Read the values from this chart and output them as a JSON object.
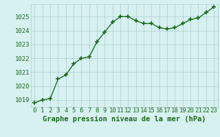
{
  "x": [
    0,
    1,
    2,
    3,
    4,
    5,
    6,
    7,
    8,
    9,
    10,
    11,
    12,
    13,
    14,
    15,
    16,
    17,
    18,
    19,
    20,
    21,
    22,
    23
  ],
  "y": [
    1018.8,
    1019.0,
    1019.1,
    1020.5,
    1020.8,
    1021.6,
    1022.0,
    1022.1,
    1023.2,
    1023.9,
    1024.6,
    1025.0,
    1025.0,
    1024.7,
    1024.5,
    1024.5,
    1024.2,
    1024.1,
    1024.2,
    1024.5,
    1024.8,
    1024.9,
    1025.3,
    1025.7
  ],
  "ylim": [
    1018.5,
    1025.9
  ],
  "yticks": [
    1019,
    1020,
    1021,
    1022,
    1023,
    1024,
    1025
  ],
  "xticks": [
    0,
    1,
    2,
    3,
    4,
    5,
    6,
    7,
    8,
    9,
    10,
    11,
    12,
    13,
    14,
    15,
    16,
    17,
    18,
    19,
    20,
    21,
    22,
    23
  ],
  "line_color": "#1a6b1a",
  "marker": "+",
  "bg_color": "#d7f0f0",
  "grid_color": "#aacece",
  "title": "Graphe pression niveau de la mer (hPa)",
  "title_color": "#1a6b1a",
  "title_fontsize": 7.5,
  "tick_fontsize": 6.5,
  "marker_size": 4,
  "linewidth": 1.0
}
